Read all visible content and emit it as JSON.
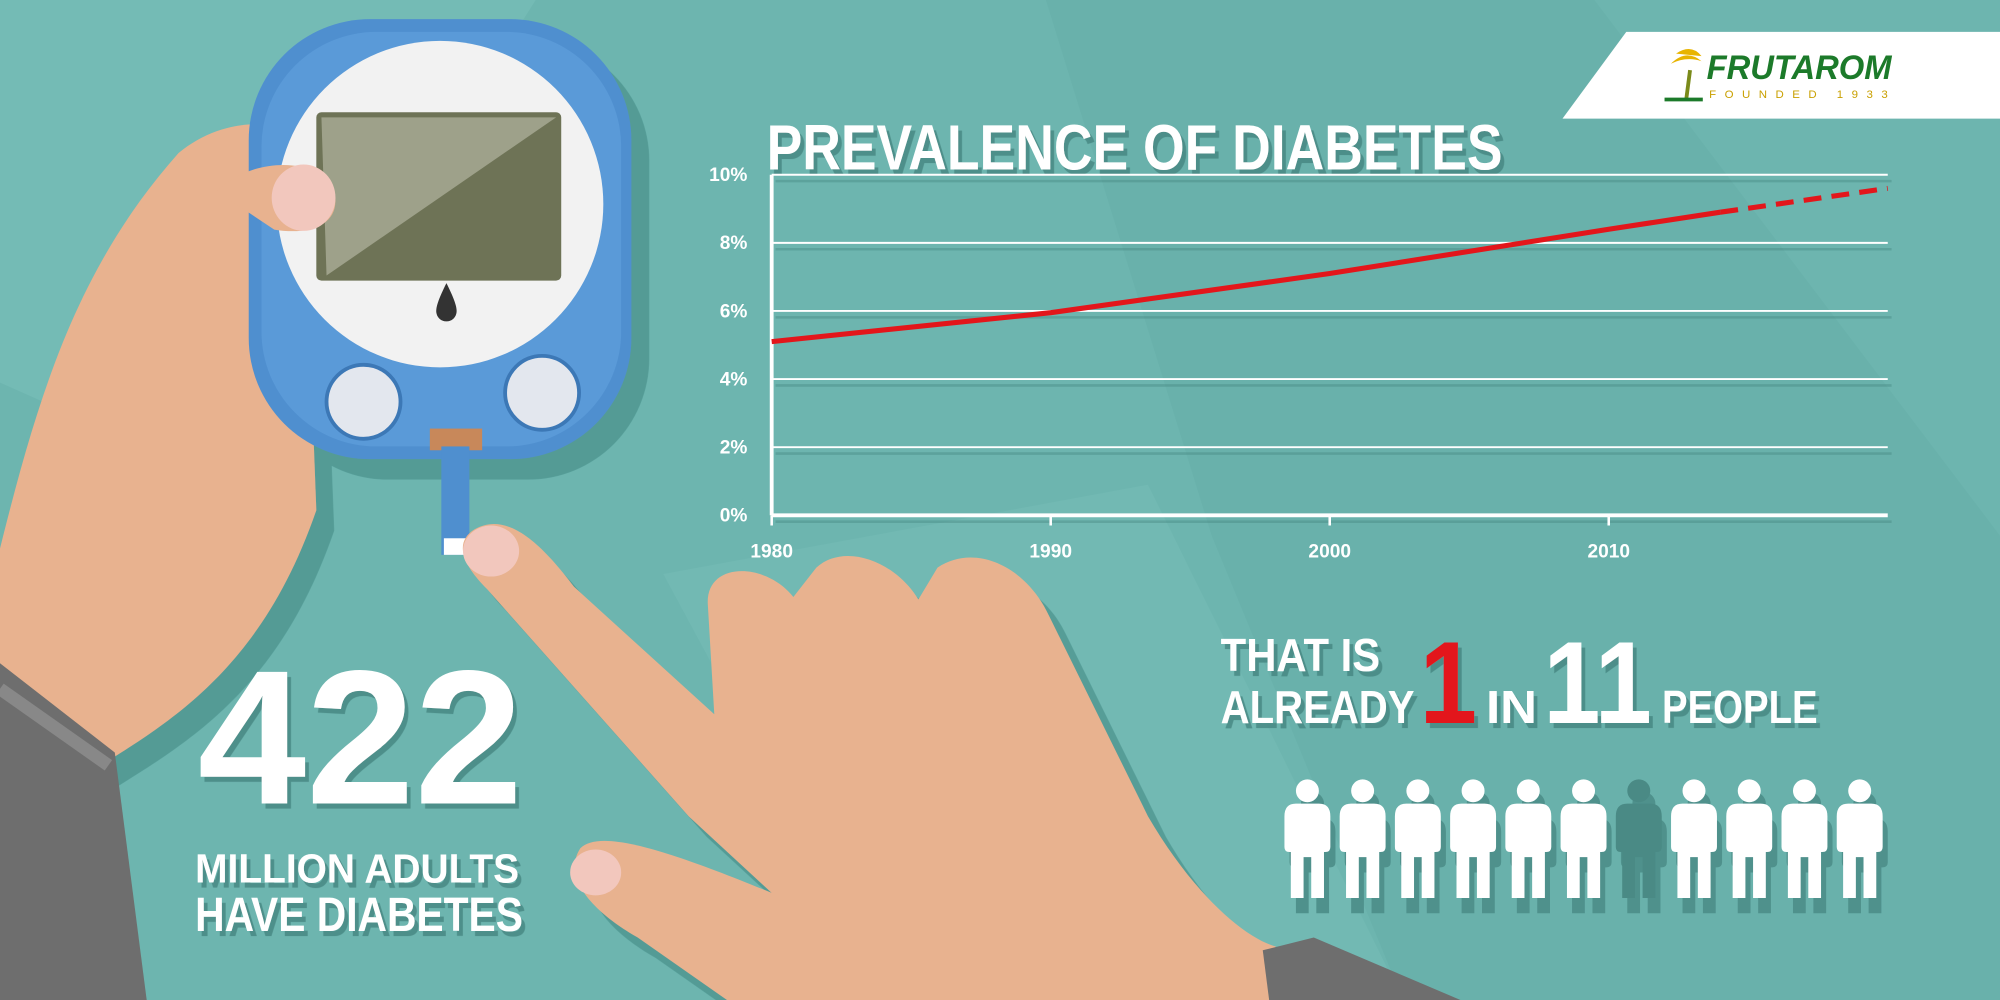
{
  "logo": {
    "name": "FRUTAROM",
    "tagline": "FOUNDED 1933"
  },
  "headline": {
    "number": 422,
    "line1": "MILLION ADULTS",
    "line2": "HAVE DIABETES"
  },
  "ratio": {
    "line1": "THAT IS",
    "line2": "ALREADY",
    "count": 1,
    "word": "IN",
    "total": 11,
    "suffix": "PEOPLE"
  },
  "chart_data": {
    "type": "line",
    "title": "PREVALENCE OF DIABETES",
    "x": [
      1980,
      1990,
      2000,
      2010,
      2014,
      2020
    ],
    "values": [
      5.1,
      5.95,
      7.1,
      8.4,
      8.9,
      9.6
    ],
    "color": "#e3161b",
    "projection_from": 2014,
    "xlim": [
      1980,
      2020
    ],
    "xticks": [
      1980,
      1990,
      2000,
      2010
    ],
    "ylim": [
      0,
      10
    ],
    "yticks": [
      {
        "value": 0,
        "label": "0%"
      },
      {
        "value": 2,
        "label": "2%"
      },
      {
        "value": 4,
        "label": "4%"
      },
      {
        "value": 6,
        "label": "6%"
      },
      {
        "value": 8,
        "label": "8%"
      },
      {
        "value": 10,
        "label": "10%"
      }
    ],
    "grid": true
  }
}
